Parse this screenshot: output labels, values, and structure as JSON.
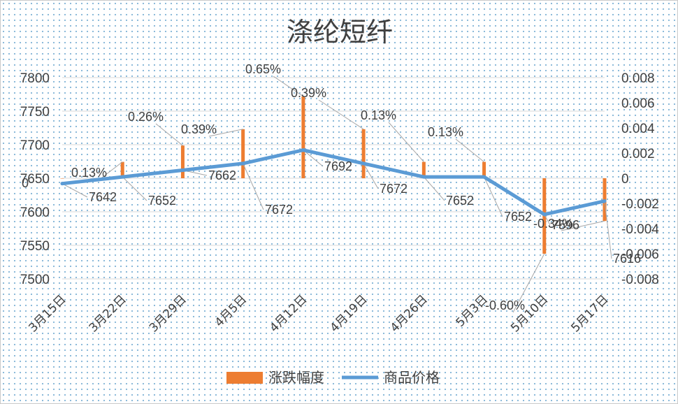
{
  "chart_data": {
    "type": "bar-line-combo",
    "title": "涤纶短纤",
    "categories": [
      "3月15日",
      "3月22日",
      "3月29日",
      "4月5日",
      "4月12日",
      "4月19日",
      "4月26日",
      "5月3日",
      "5月10日",
      "5月17日"
    ],
    "series": [
      {
        "name": "涨跌幅度",
        "type": "bar",
        "axis": "secondary",
        "color": "#ed7d31",
        "values": [
          0,
          0.0013,
          0.0026,
          0.0039,
          0.0065,
          0.0039,
          0.0013,
          0.0013,
          -0.006,
          -0.0034
        ],
        "labels": [
          "0",
          "0.13%",
          "0.26%",
          "0.39%",
          "0.65%",
          "0.39%",
          "0.13%",
          "0.13%",
          "-0.60%",
          "-0.34%"
        ]
      },
      {
        "name": "商品价格",
        "type": "line",
        "axis": "primary",
        "color": "#5b9bd5",
        "values": [
          7642,
          7652,
          7662,
          7672,
          7692,
          7672,
          7652,
          7652,
          7596,
          7616
        ],
        "labels": [
          "7642",
          "7652",
          "7662",
          "7672",
          "7692",
          "7672",
          "7652",
          "7652",
          "7596",
          "7616"
        ]
      }
    ],
    "y_primary": {
      "min": 7500,
      "max": 7800,
      "ticks": [
        "7500",
        "7550",
        "7600",
        "7650",
        "7700",
        "7750",
        "7800"
      ]
    },
    "y_secondary": {
      "min": -0.008,
      "max": 0.008,
      "ticks": [
        "-0.008",
        "-0.006",
        "-0.004",
        "-0.002",
        "0",
        "0.002",
        "0.004",
        "0.006",
        "0.008"
      ]
    },
    "legend": {
      "position": "bottom",
      "items": [
        "涨跌幅度",
        "商品价格"
      ]
    },
    "grid": true
  }
}
